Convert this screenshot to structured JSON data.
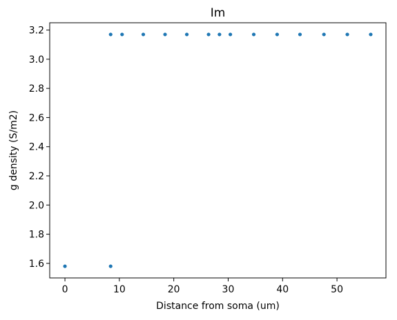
{
  "chart_data": {
    "type": "scatter",
    "title": "Im",
    "xlabel": "Distance from soma (um)",
    "ylabel": "g density (S/m2)",
    "xlim": [
      -2.8,
      59.0
    ],
    "ylim": [
      1.5,
      3.25
    ],
    "xticks": [
      0,
      10,
      20,
      30,
      40,
      50
    ],
    "yticks": [
      1.6,
      1.8,
      2.0,
      2.2,
      2.4,
      2.6,
      2.8,
      3.0,
      3.2
    ],
    "ytick_labels": [
      "1.6",
      "1.8",
      "2.0",
      "2.2",
      "2.4",
      "2.6",
      "2.8",
      "3.0",
      "3.2"
    ],
    "grid": false,
    "marker_color": "#1f77b4",
    "series": [
      {
        "x": [
          0,
          8.4,
          8.4,
          10.5,
          14.4,
          18.4,
          22.4,
          26.4,
          28.4,
          30.4,
          34.7,
          39.0,
          43.2,
          47.6,
          51.9,
          56.2
        ],
        "y": [
          1.58,
          1.58,
          3.17,
          3.17,
          3.17,
          3.17,
          3.17,
          3.17,
          3.17,
          3.17,
          3.17,
          3.17,
          3.17,
          3.17,
          3.17,
          3.17
        ]
      }
    ]
  }
}
